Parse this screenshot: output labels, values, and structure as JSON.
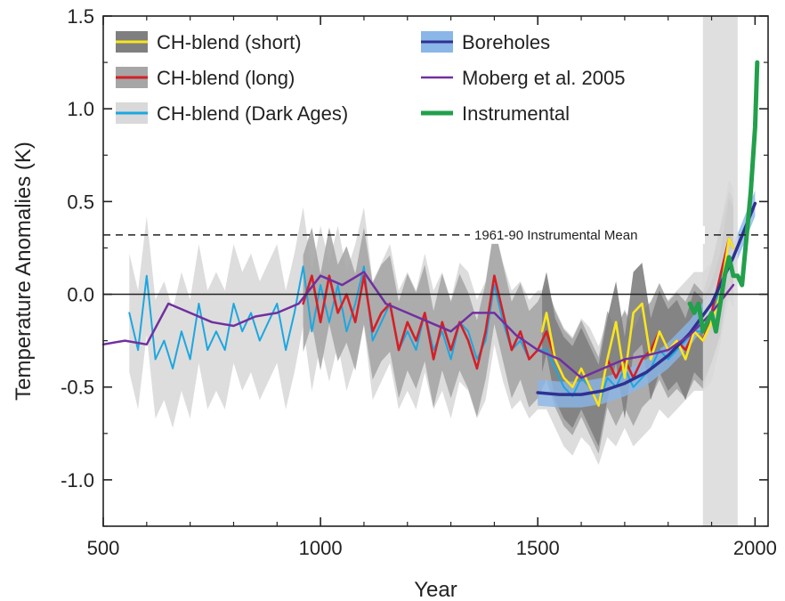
{
  "chart_data": {
    "type": "line",
    "xlabel": "Year",
    "ylabel": "Temperature Anomalies (K)",
    "xlim": [
      500,
      2030
    ],
    "ylim": [
      -1.25,
      1.5
    ],
    "xticks": [
      500,
      1000,
      1500,
      2000
    ],
    "xtick_labels": [
      "500",
      "1000",
      "1500",
      "2000"
    ],
    "yticks": [
      -1.0,
      -0.5,
      0.0,
      0.5,
      1.0,
      1.5
    ],
    "ytick_labels": [
      "-1.0",
      "-0.5",
      "0.0",
      "0.5",
      "1.0",
      "1.5"
    ],
    "grid": false,
    "legend_position": "top",
    "zero_line": true,
    "reference_line": {
      "y": 0.32,
      "label": "1961-90 Instrumental Mean",
      "style": "dashed"
    },
    "shaded_period": {
      "x": [
        1880,
        1960
      ],
      "color": "#d9d9d9"
    },
    "series": [
      {
        "name": "CH-blend (Dark Ages)",
        "color": "#1ca7e0",
        "band_color": "#d9d9d9",
        "x": [
          560,
          580,
          600,
          620,
          640,
          660,
          680,
          700,
          720,
          740,
          760,
          780,
          800,
          820,
          840,
          860,
          880,
          900,
          920,
          940,
          960,
          980,
          1000,
          1020,
          1040,
          1060,
          1080,
          1100,
          1120,
          1140,
          1160,
          1180,
          1200,
          1220,
          1240,
          1260,
          1280,
          1300,
          1320,
          1340,
          1360,
          1380,
          1400,
          1420,
          1440,
          1460,
          1480,
          1500,
          1520,
          1540,
          1560,
          1580,
          1600,
          1620,
          1640,
          1660,
          1680,
          1700,
          1720,
          1740,
          1760,
          1780,
          1800,
          1820,
          1840,
          1860,
          1880,
          1900,
          1920,
          1940,
          1950
        ],
        "values": [
          -0.1,
          -0.3,
          0.1,
          -0.35,
          -0.25,
          -0.4,
          -0.2,
          -0.35,
          -0.05,
          -0.3,
          -0.2,
          -0.3,
          -0.05,
          -0.2,
          -0.1,
          -0.25,
          -0.15,
          -0.05,
          -0.3,
          -0.1,
          0.15,
          -0.2,
          0.05,
          -0.15,
          0.05,
          -0.2,
          -0.05,
          0.15,
          -0.25,
          -0.15,
          -0.05,
          -0.3,
          -0.2,
          -0.3,
          -0.1,
          -0.3,
          -0.2,
          -0.35,
          -0.15,
          -0.2,
          -0.35,
          -0.25,
          0.05,
          -0.15,
          -0.3,
          -0.25,
          -0.35,
          -0.3,
          -0.3,
          -0.4,
          -0.5,
          -0.55,
          -0.45,
          -0.5,
          -0.6,
          -0.45,
          -0.5,
          -0.4,
          -0.5,
          -0.45,
          -0.4,
          -0.3,
          -0.35,
          -0.3,
          -0.25,
          -0.2,
          -0.2,
          -0.15,
          0.05,
          0.3,
          0.25
        ]
      },
      {
        "name": "CH-blend (long)",
        "color": "#d42027",
        "band_color": "#a6a6a6",
        "x": [
          960,
          980,
          1000,
          1020,
          1040,
          1060,
          1080,
          1100,
          1120,
          1140,
          1160,
          1180,
          1200,
          1220,
          1240,
          1260,
          1280,
          1300,
          1320,
          1340,
          1360,
          1380,
          1400,
          1420,
          1440,
          1460,
          1480,
          1500,
          1520,
          1540,
          1560,
          1580,
          1600,
          1620,
          1640,
          1660,
          1680,
          1700,
          1720,
          1740,
          1760,
          1780,
          1800,
          1820,
          1840,
          1860,
          1880,
          1900,
          1920,
          1940,
          1950
        ],
        "values": [
          -0.05,
          0.1,
          -0.15,
          0.1,
          -0.1,
          0.0,
          -0.15,
          0.1,
          -0.2,
          -0.1,
          -0.05,
          -0.3,
          -0.15,
          -0.25,
          -0.1,
          -0.35,
          -0.15,
          -0.3,
          -0.15,
          -0.25,
          -0.4,
          -0.2,
          0.1,
          -0.1,
          -0.3,
          -0.2,
          -0.35,
          -0.3,
          -0.2,
          -0.35,
          -0.45,
          -0.5,
          -0.4,
          -0.5,
          -0.6,
          -0.35,
          -0.45,
          -0.35,
          -0.45,
          -0.35,
          -0.3,
          -0.2,
          -0.3,
          -0.25,
          -0.3,
          -0.2,
          -0.25,
          -0.1,
          0.1,
          0.3,
          0.25
        ]
      },
      {
        "name": "CH-blend (short)",
        "color": "#f7e61e",
        "band_color": "#7f7f7f",
        "x": [
          1510,
          1520,
          1540,
          1560,
          1580,
          1600,
          1620,
          1640,
          1660,
          1680,
          1700,
          1720,
          1740,
          1760,
          1780,
          1800,
          1820,
          1840,
          1860,
          1880,
          1900,
          1920,
          1940,
          1950
        ],
        "values": [
          -0.2,
          -0.1,
          -0.35,
          -0.45,
          -0.5,
          -0.4,
          -0.5,
          -0.6,
          -0.35,
          -0.15,
          -0.45,
          -0.1,
          -0.05,
          -0.35,
          -0.2,
          -0.3,
          -0.25,
          -0.35,
          -0.2,
          -0.25,
          -0.15,
          0.0,
          0.3,
          0.25
        ]
      },
      {
        "name": "Boreholes",
        "color": "#2e3192",
        "band_color": "#8ab6e8",
        "x": [
          1500,
          1550,
          1600,
          1650,
          1700,
          1750,
          1800,
          1850,
          1900,
          1950,
          2000
        ],
        "values": [
          -0.53,
          -0.54,
          -0.54,
          -0.52,
          -0.48,
          -0.42,
          -0.33,
          -0.21,
          -0.05,
          0.2,
          0.49
        ]
      },
      {
        "name": "Moberg et al. 2005",
        "color": "#7030a0",
        "x": [
          500,
          550,
          600,
          650,
          700,
          750,
          800,
          850,
          900,
          950,
          1000,
          1050,
          1100,
          1150,
          1200,
          1250,
          1300,
          1350,
          1400,
          1450,
          1500,
          1550,
          1600,
          1650,
          1700,
          1750,
          1800,
          1850,
          1900,
          1950
        ],
        "values": [
          -0.27,
          -0.25,
          -0.27,
          -0.05,
          -0.1,
          -0.15,
          -0.17,
          -0.12,
          -0.1,
          -0.05,
          0.1,
          0.05,
          0.12,
          -0.05,
          -0.1,
          -0.15,
          -0.2,
          -0.1,
          -0.1,
          -0.22,
          -0.3,
          -0.35,
          -0.45,
          -0.4,
          -0.35,
          -0.33,
          -0.3,
          -0.22,
          -0.1,
          0.05
        ]
      },
      {
        "name": "Instrumental",
        "color": "#22a04b",
        "x": [
          1850,
          1860,
          1870,
          1880,
          1890,
          1900,
          1910,
          1920,
          1930,
          1940,
          1950,
          1960,
          1970,
          1980,
          1990,
          2000,
          2005
        ],
        "values": [
          -0.05,
          -0.1,
          -0.05,
          -0.2,
          -0.15,
          -0.1,
          -0.2,
          -0.05,
          0.1,
          0.2,
          0.1,
          0.1,
          0.05,
          0.3,
          0.55,
          0.9,
          1.25
        ]
      }
    ]
  }
}
